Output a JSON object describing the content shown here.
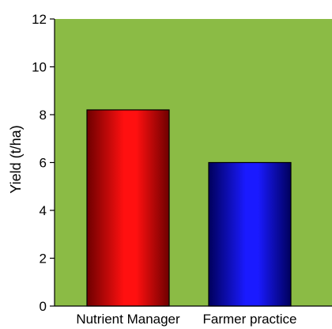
{
  "chart_data": {
    "type": "bar",
    "categories": [
      "Nutrient Manager",
      "Farmer practice"
    ],
    "values": [
      8.2,
      6.0
    ],
    "ylabel": "Yield (t/ha)",
    "ylim": [
      0,
      12
    ],
    "yticks": [
      0,
      2,
      4,
      6,
      8,
      10,
      12
    ],
    "grid": false,
    "legend": "none",
    "plot_background": "#8bbb45",
    "bar_colors": [
      {
        "light": "#ff1010",
        "dark": "#6e0000"
      },
      {
        "light": "#1a1aff",
        "dark": "#00005c"
      }
    ]
  }
}
